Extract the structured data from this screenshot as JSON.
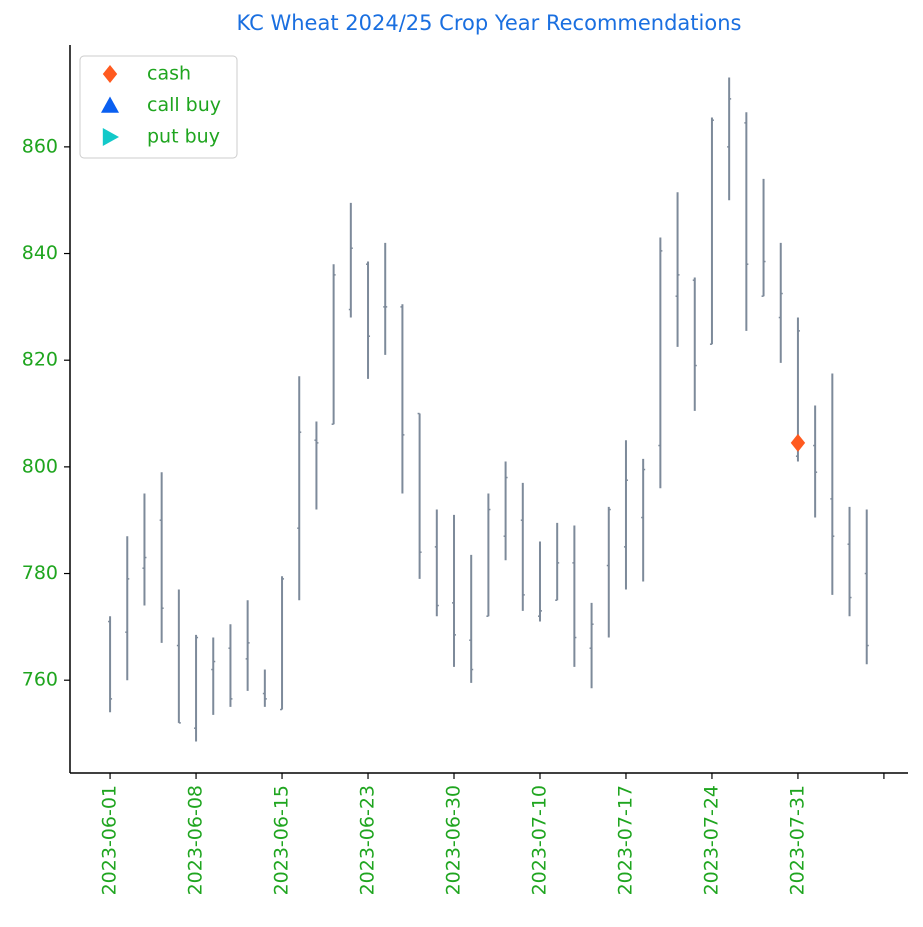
{
  "chart_data": {
    "type": "ohlc",
    "title": "KC  Wheat 2024/25 Crop Year Recommendations",
    "title_color": "#1a6fe0",
    "label_color": "#1fa51f",
    "xlim": [
      -2.33,
      46.4
    ],
    "xticks": [
      {
        "value": 0,
        "label": "2023-06-01"
      },
      {
        "value": 5,
        "label": "2023-06-08"
      },
      {
        "value": 10,
        "label": "2023-06-15"
      },
      {
        "value": 15,
        "label": "2023-06-23"
      },
      {
        "value": 20,
        "label": "2023-06-30"
      },
      {
        "value": 25,
        "label": "2023-07-10"
      },
      {
        "value": 30,
        "label": "2023-07-17"
      },
      {
        "value": 35,
        "label": "2023-07-24"
      },
      {
        "value": 40,
        "label": "2023-07-31"
      },
      {
        "value": 45,
        "label": null
      }
    ],
    "ylim": [
      742.6,
      879.1
    ],
    "yticks": [
      760,
      780,
      800,
      820,
      840,
      860
    ],
    "ohlc": {
      "color": "#7d8a9a",
      "open": [
        771,
        769,
        781,
        790,
        766.5,
        751,
        762,
        766,
        764,
        757.5,
        754.5,
        788.5,
        805,
        808,
        829.5,
        838,
        830,
        830,
        810,
        785,
        774.5,
        767.5,
        772,
        787,
        790,
        772,
        775,
        782,
        766,
        781.5,
        785,
        790.5,
        804,
        832,
        835,
        823,
        860,
        864.5,
        832,
        828,
        802,
        804,
        794,
        785.5,
        780
      ],
      "high": [
        772,
        787,
        795,
        799,
        777,
        768.5,
        768,
        770.5,
        775,
        762,
        779.5,
        817,
        808.5,
        838,
        849.5,
        838.5,
        842,
        830.5,
        810,
        792,
        791,
        783.5,
        795,
        801,
        797,
        786,
        789.5,
        789,
        774.5,
        792.5,
        805,
        801.5,
        843,
        851.5,
        835.5,
        865.5,
        873,
        866.5,
        854,
        842,
        828,
        811.5,
        817.5,
        792.5,
        792
      ],
      "low": [
        754,
        760,
        774,
        767,
        752,
        748.5,
        753.5,
        755,
        758,
        755,
        754.5,
        775,
        792,
        808,
        828,
        816.5,
        821,
        795,
        779,
        772,
        762.5,
        759.5,
        772,
        782.5,
        773,
        771,
        775,
        762.5,
        758.5,
        768,
        777,
        778.5,
        796,
        822.5,
        810.5,
        823,
        850,
        825.5,
        832,
        819.5,
        801,
        790.5,
        776,
        772,
        763
      ],
      "close": [
        756.5,
        779,
        783,
        773.5,
        752,
        768,
        763.5,
        756.5,
        767,
        756.5,
        779,
        806.5,
        804.5,
        836,
        841,
        824.5,
        830,
        806,
        784,
        774,
        768.5,
        762,
        792,
        798,
        776,
        773,
        782,
        768,
        770.5,
        792,
        797.5,
        799.5,
        840.5,
        836,
        819,
        865,
        869,
        838,
        838.5,
        832.5,
        825.5,
        799,
        787,
        775.5,
        766.5
      ]
    },
    "series": [
      {
        "name": "cash",
        "color": "#ff5a1f",
        "marker": "diamond",
        "x": [
          40
        ],
        "values": [
          804.5
        ]
      },
      {
        "name": "call buy",
        "color": "#0a5ff0",
        "marker": "triangle-up",
        "x": [],
        "values": []
      },
      {
        "name": "put buy",
        "color": "#12c9c9",
        "marker": "triangle-right",
        "x": [],
        "values": []
      }
    ],
    "legend": "upper left"
  }
}
